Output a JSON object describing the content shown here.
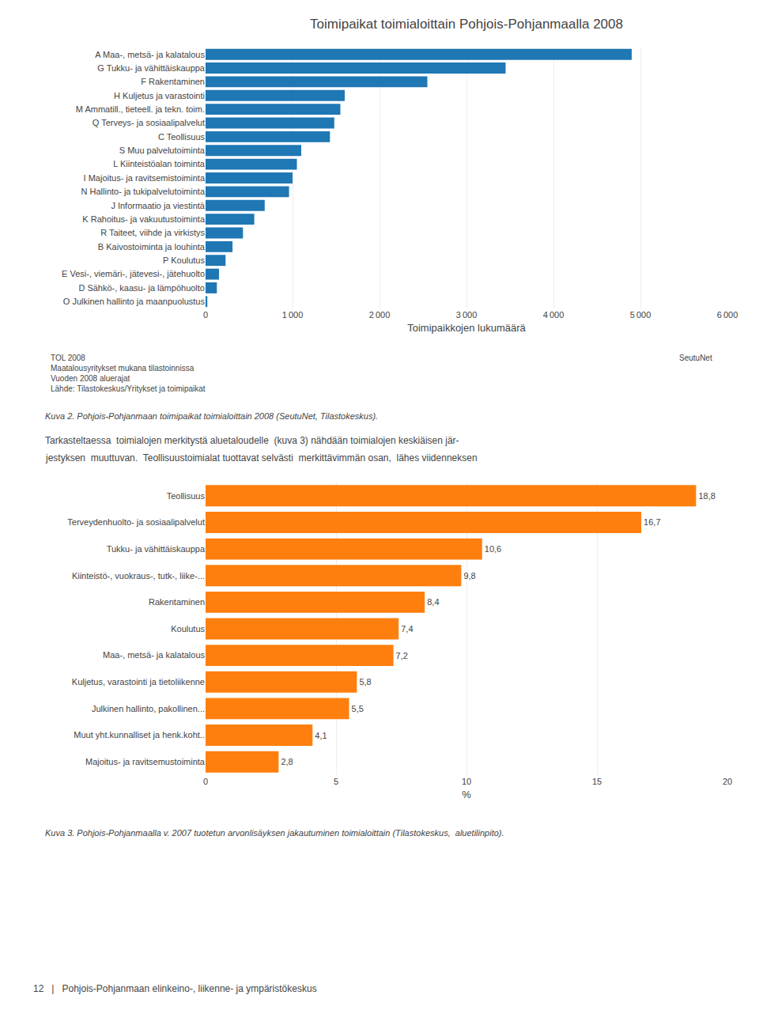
{
  "chart_data": [
    {
      "type": "bar",
      "orientation": "horizontal",
      "title": "Toimipaikat toimialoittain Pohjois-Pohjanmaalla 2008",
      "x_label": "Toimipaikkojen lukumäärä",
      "categories": [
        "A Maa-, metsä- ja kalatalous",
        "G Tukku- ja vähittäiskauppa",
        "F Rakentaminen",
        "H Kuljetus ja varastointi",
        "M Ammatill., tieteell. ja tekn. toim.",
        "Q Terveys- ja sosiaalipalvelut",
        "C Teollisuus",
        "S Muu palvelutoiminta",
        "L Kiinteistöalan toiminta",
        "I Majoitus- ja ravitsemistoiminta",
        "N Hallinto- ja tukipalvelutoiminta",
        "J Informaatio ja viestintä",
        "K Rahoitus- ja vakuutustoiminta",
        "R Taiteet, viihde ja virkistys",
        "B Kaivostoiminta ja louhinta",
        "P Koulutus",
        "E Vesi-, viemäri-, jätevesi-, jätehuolto",
        "D Sähkö-, kaasu- ja lämpöhuolto",
        "O Julkinen hallinto ja maanpuolustus"
      ],
      "values": [
        4900,
        3450,
        2550,
        1600,
        1550,
        1480,
        1430,
        1100,
        1050,
        1000,
        960,
        680,
        560,
        430,
        310,
        230,
        155,
        130,
        20
      ],
      "xlim": [
        0,
        6000
      ],
      "xticks": [
        0,
        {
          "value": 1000,
          "label": "1 000"
        },
        {
          "value": 2000,
          "label": "2 000"
        },
        {
          "value": 3000,
          "label": "3 000"
        },
        {
          "value": 4000,
          "label": "4 000"
        },
        {
          "value": 5000,
          "label": "5 000"
        },
        {
          "value": 6000,
          "label": "6 000"
        }
      ],
      "grid": true,
      "annotations": [
        "TOL 2008\nMaatalousyritykset mukana tilastoinnissa\nVuoden 2008 aluerajat\nLähde: Tilastokeskus/Yritykset ja toimipaikat",
        "SeutuNet",
        "Kuva 2. Pohjois-Pohjanmaan toimipaikat toimialoittain 2008 (SeutuNet, Tilastokeskus).",
        "Tarkasteltaessa  toimialojen merkitystä aluetaloudelle  (kuva 3) nähdään toimialojen keskiäisen jär-",
        "jestyksen  muuttuvan.  Teollisuustoimialat tuottavat selvästi  merkittävimmän osan,  lähes viidenneksen"
      ]
    },
    {
      "type": "bar",
      "orientation": "horizontal",
      "x_label": "%",
      "categories": [
        "Teollisuus",
        "Terveydenhuolto- ja sosiaalipalvelut",
        "Tukku- ja vähittäiskauppa",
        "Kiinteistö-, vuokraus-, tutk-, liike-...",
        "Rakentaminen",
        "Koulutus",
        "Maa-, metsä- ja kalatalous",
        "Kuljetus, varastointi ja tietoliikenne",
        "Julkinen hallinto, pakollinen...",
        "Muut yht.kunnalliset ja henk.koht..",
        "Majoitus- ja ravitsemustoiminta"
      ],
      "values": [
        18.8,
        16.7,
        10.6,
        9.8,
        8.4,
        7.4,
        7.2,
        5.8,
        5.5,
        4.1,
        2.8
      ],
      "value_labels": [
        "18,8",
        "16,7",
        "10,6",
        "9,8",
        "8,4",
        "7,4",
        "7,2",
        "5,8",
        "5,5",
        "4,1",
        "2,8"
      ],
      "data_labels": true,
      "xlim": [
        0,
        20
      ],
      "xticks": [
        0,
        5,
        10,
        15,
        20
      ],
      "grid": true,
      "annotations": [
        "Kuva 3. Pohjois-Pohjanmaalla v. 2007 tuotetun arvonlisäyksen jakautuminen toimialoittain (Tilastokeskus,  aluetilinpito).",
        "12   |   Pohjois-Pohjanmaan elinkeino-, liikenne- ja ympäristökeskus"
      ]
    }
  ]
}
